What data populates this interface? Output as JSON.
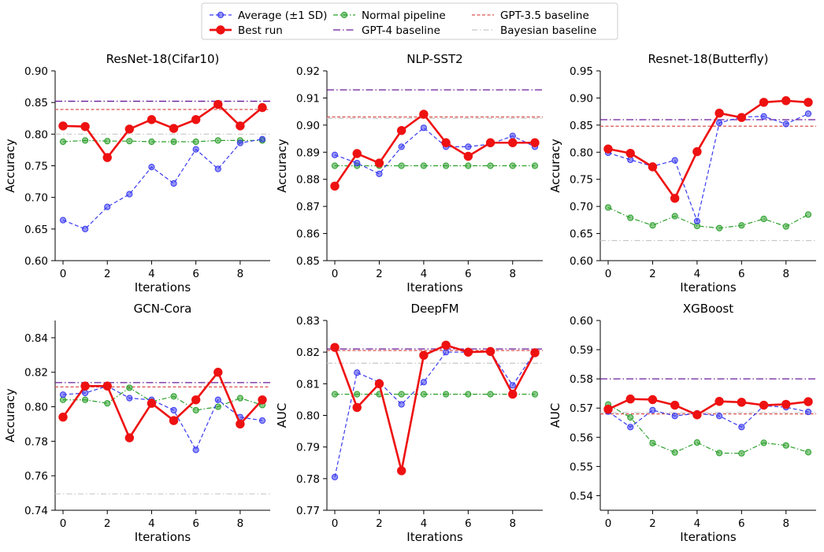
{
  "legend": {
    "entries": [
      {
        "key": "avg",
        "label": "Average (±1 SD)"
      },
      {
        "key": "best",
        "label": "Best run"
      },
      {
        "key": "normal",
        "label": "Normal pipeline"
      },
      {
        "key": "gpt4",
        "label": "GPT-4 baseline"
      },
      {
        "key": "gpt35",
        "label": "GPT-3.5 baseline"
      },
      {
        "key": "bayes",
        "label": "Bayesian baseline"
      }
    ]
  },
  "colors": {
    "avg": "#3a3af0",
    "best": "#ee1111",
    "normal": "#2ca02c",
    "gpt4": "#6a1b9a",
    "gpt35": "#d9534f",
    "bayes": "#c8c8c8"
  },
  "chart_data": [
    {
      "type": "line",
      "title": "ResNet-18(Cifar10)",
      "xlabel": "Iterations",
      "ylabel": "Accuracy",
      "x": [
        0,
        1,
        2,
        3,
        4,
        5,
        6,
        7,
        8,
        9
      ],
      "xticks": [
        0,
        2,
        4,
        6,
        8
      ],
      "ylim": [
        0.6,
        0.9
      ],
      "yticks": [
        "0.60",
        "0.65",
        "0.70",
        "0.75",
        "0.80",
        "0.85",
        "0.90"
      ],
      "series": [
        {
          "key": "normal",
          "name": "Normal pipeline",
          "values": [
            0.788,
            0.79,
            0.789,
            0.789,
            0.788,
            0.788,
            0.788,
            0.79,
            0.79,
            0.79
          ]
        },
        {
          "key": "avg",
          "name": "Average (±1 SD)",
          "values": [
            0.664,
            0.65,
            0.685,
            0.705,
            0.748,
            0.722,
            0.776,
            0.745,
            0.786,
            0.792
          ]
        },
        {
          "key": "best",
          "name": "Best run",
          "values": [
            0.813,
            0.812,
            0.763,
            0.808,
            0.823,
            0.809,
            0.823,
            0.847,
            0.813,
            0.842
          ]
        }
      ],
      "baselines": [
        {
          "key": "gpt4",
          "name": "GPT-4 baseline",
          "value": 0.852
        },
        {
          "key": "gpt35",
          "name": "GPT-3.5 baseline",
          "value": 0.839
        },
        {
          "key": "bayes",
          "name": "Bayesian baseline",
          "value": 0.8
        }
      ]
    },
    {
      "type": "line",
      "title": "NLP-SST2",
      "xlabel": "Iterations",
      "ylabel": "Accuracy",
      "x": [
        0,
        1,
        2,
        3,
        4,
        5,
        6,
        7,
        8,
        9
      ],
      "xticks": [
        0,
        2,
        4,
        6,
        8
      ],
      "ylim": [
        0.85,
        0.92
      ],
      "yticks": [
        "0.85",
        "0.86",
        "0.87",
        "0.88",
        "0.89",
        "0.90",
        "0.91",
        "0.92"
      ],
      "series": [
        {
          "key": "normal",
          "name": "Normal pipeline",
          "values": [
            0.885,
            0.885,
            0.885,
            0.885,
            0.885,
            0.885,
            0.885,
            0.885,
            0.885,
            0.885
          ]
        },
        {
          "key": "avg",
          "name": "Average (±1 SD)",
          "values": [
            0.889,
            0.886,
            0.882,
            0.892,
            0.899,
            0.892,
            0.892,
            0.893,
            0.896,
            0.892
          ]
        },
        {
          "key": "best",
          "name": "Best run",
          "values": [
            0.8775,
            0.8895,
            0.886,
            0.898,
            0.904,
            0.8935,
            0.8885,
            0.8935,
            0.8935,
            0.8935
          ]
        }
      ],
      "baselines": [
        {
          "key": "gpt4",
          "name": "GPT-4 baseline",
          "value": 0.913
        },
        {
          "key": "gpt35",
          "name": "GPT-3.5 baseline",
          "value": 0.903
        },
        {
          "key": "bayes",
          "name": "Bayesian baseline",
          "value": 0.9025
        }
      ]
    },
    {
      "type": "line",
      "title": "Resnet-18(Butterfly)",
      "xlabel": "Iterations",
      "ylabel": "Accuracy",
      "x": [
        0,
        1,
        2,
        3,
        4,
        5,
        6,
        7,
        8,
        9
      ],
      "xticks": [
        0,
        2,
        4,
        6,
        8
      ],
      "ylim": [
        0.6,
        0.95
      ],
      "yticks": [
        "0.60",
        "0.65",
        "0.70",
        "0.75",
        "0.80",
        "0.85",
        "0.90",
        "0.95"
      ],
      "series": [
        {
          "key": "normal",
          "name": "Normal pipeline",
          "values": [
            0.698,
            0.679,
            0.665,
            0.682,
            0.664,
            0.66,
            0.665,
            0.677,
            0.663,
            0.685
          ]
        },
        {
          "key": "avg",
          "name": "Average (±1 SD)",
          "values": [
            0.799,
            0.786,
            0.774,
            0.785,
            0.673,
            0.854,
            0.865,
            0.866,
            0.852,
            0.871
          ]
        },
        {
          "key": "best",
          "name": "Best run",
          "values": [
            0.806,
            0.798,
            0.773,
            0.715,
            0.801,
            0.872,
            0.864,
            0.892,
            0.895,
            0.892
          ]
        }
      ],
      "baselines": [
        {
          "key": "gpt4",
          "name": "GPT-4 baseline",
          "value": 0.86
        },
        {
          "key": "gpt35",
          "name": "GPT-3.5 baseline",
          "value": 0.848
        },
        {
          "key": "bayes",
          "name": "Bayesian baseline",
          "value": 0.637
        }
      ]
    },
    {
      "type": "line",
      "title": "GCN-Cora",
      "xlabel": "Iterations",
      "ylabel": "Accuracy",
      "x": [
        0,
        1,
        2,
        3,
        4,
        5,
        6,
        7,
        8,
        9
      ],
      "xticks": [
        0,
        2,
        4,
        6,
        8
      ],
      "ylim": [
        0.74,
        0.85
      ],
      "yticks": [
        "0.74",
        "0.76",
        "0.78",
        "0.80",
        "0.82",
        "0.84"
      ],
      "series": [
        {
          "key": "normal",
          "name": "Normal pipeline",
          "values": [
            0.804,
            0.804,
            0.802,
            0.811,
            0.803,
            0.806,
            0.798,
            0.8,
            0.805,
            0.801
          ]
        },
        {
          "key": "avg",
          "name": "Average (±1 SD)",
          "values": [
            0.807,
            0.808,
            0.812,
            0.805,
            0.804,
            0.798,
            0.775,
            0.804,
            0.794,
            0.792
          ]
        },
        {
          "key": "best",
          "name": "Best run",
          "values": [
            0.794,
            0.812,
            0.812,
            0.782,
            0.802,
            0.792,
            0.804,
            0.82,
            0.79,
            0.804
          ]
        }
      ],
      "baselines": [
        {
          "key": "gpt4",
          "name": "GPT-4 baseline",
          "value": 0.814
        },
        {
          "key": "gpt35",
          "name": "GPT-3.5 baseline",
          "value": 0.8115
        },
        {
          "key": "bayes",
          "name": "Bayesian baseline",
          "value": 0.7495
        }
      ]
    },
    {
      "type": "line",
      "title": "DeepFM",
      "xlabel": "Iterations",
      "ylabel": "AUC",
      "x": [
        0,
        1,
        2,
        3,
        4,
        5,
        6,
        7,
        8,
        9
      ],
      "xticks": [
        0,
        2,
        4,
        6,
        8
      ],
      "ylim": [
        0.77,
        0.83
      ],
      "yticks": [
        "0.77",
        "0.78",
        "0.79",
        "0.80",
        "0.81",
        "0.82",
        "0.83"
      ],
      "series": [
        {
          "key": "normal",
          "name": "Normal pipeline",
          "values": [
            0.8067,
            0.8067,
            0.8067,
            0.8067,
            0.8067,
            0.8067,
            0.8067,
            0.8067,
            0.8067,
            0.8067
          ]
        },
        {
          "key": "avg",
          "name": "Average (±1 SD)",
          "values": [
            0.7805,
            0.8135,
            0.8105,
            0.8035,
            0.8105,
            0.82,
            0.82,
            0.82,
            0.8095,
            0.82
          ]
        },
        {
          "key": "best",
          "name": "Best run",
          "values": [
            0.8215,
            0.8025,
            0.81,
            0.7825,
            0.819,
            0.8222,
            0.82,
            0.8202,
            0.8067,
            0.8198
          ]
        }
      ],
      "baselines": [
        {
          "key": "gpt4",
          "name": "GPT-4 baseline",
          "value": 0.821
        },
        {
          "key": "gpt35",
          "name": "GPT-3.5 baseline",
          "value": 0.8205
        },
        {
          "key": "bayes",
          "name": "Bayesian baseline",
          "value": 0.8165
        }
      ]
    },
    {
      "type": "line",
      "title": "XGBoost",
      "xlabel": "Iterations",
      "ylabel": "AUC",
      "x": [
        0,
        1,
        2,
        3,
        4,
        5,
        6,
        7,
        8,
        9
      ],
      "xticks": [
        0,
        2,
        4,
        6,
        8
      ],
      "ylim": [
        0.535,
        0.6
      ],
      "yticks": [
        "0.54",
        "0.55",
        "0.56",
        "0.57",
        "0.58",
        "0.59",
        "0.60"
      ],
      "ytick_values": [
        0.54,
        0.55,
        0.56,
        0.57,
        0.58,
        0.59,
        0.6
      ],
      "series": [
        {
          "key": "normal",
          "name": "Normal pipeline",
          "values": [
            0.5712,
            0.5668,
            0.558,
            0.5548,
            0.5582,
            0.5546,
            0.5545,
            0.5581,
            0.5572,
            0.5549
          ]
        },
        {
          "key": "avg",
          "name": "Average (±1 SD)",
          "values": [
            0.5688,
            0.5635,
            0.5693,
            0.5673,
            0.5682,
            0.5673,
            0.5635,
            0.5708,
            0.5703,
            0.5687
          ]
        },
        {
          "key": "best",
          "name": "Best run",
          "values": [
            0.5696,
            0.5731,
            0.5729,
            0.571,
            0.5677,
            0.5723,
            0.572,
            0.571,
            0.5713,
            0.5722
          ]
        }
      ],
      "baselines": [
        {
          "key": "gpt4",
          "name": "GPT-4 baseline",
          "value": 0.58
        },
        {
          "key": "gpt35",
          "name": "GPT-3.5 baseline",
          "value": 0.568
        },
        {
          "key": "bayes",
          "name": "Bayesian baseline",
          "value": 0.5685
        }
      ]
    }
  ]
}
